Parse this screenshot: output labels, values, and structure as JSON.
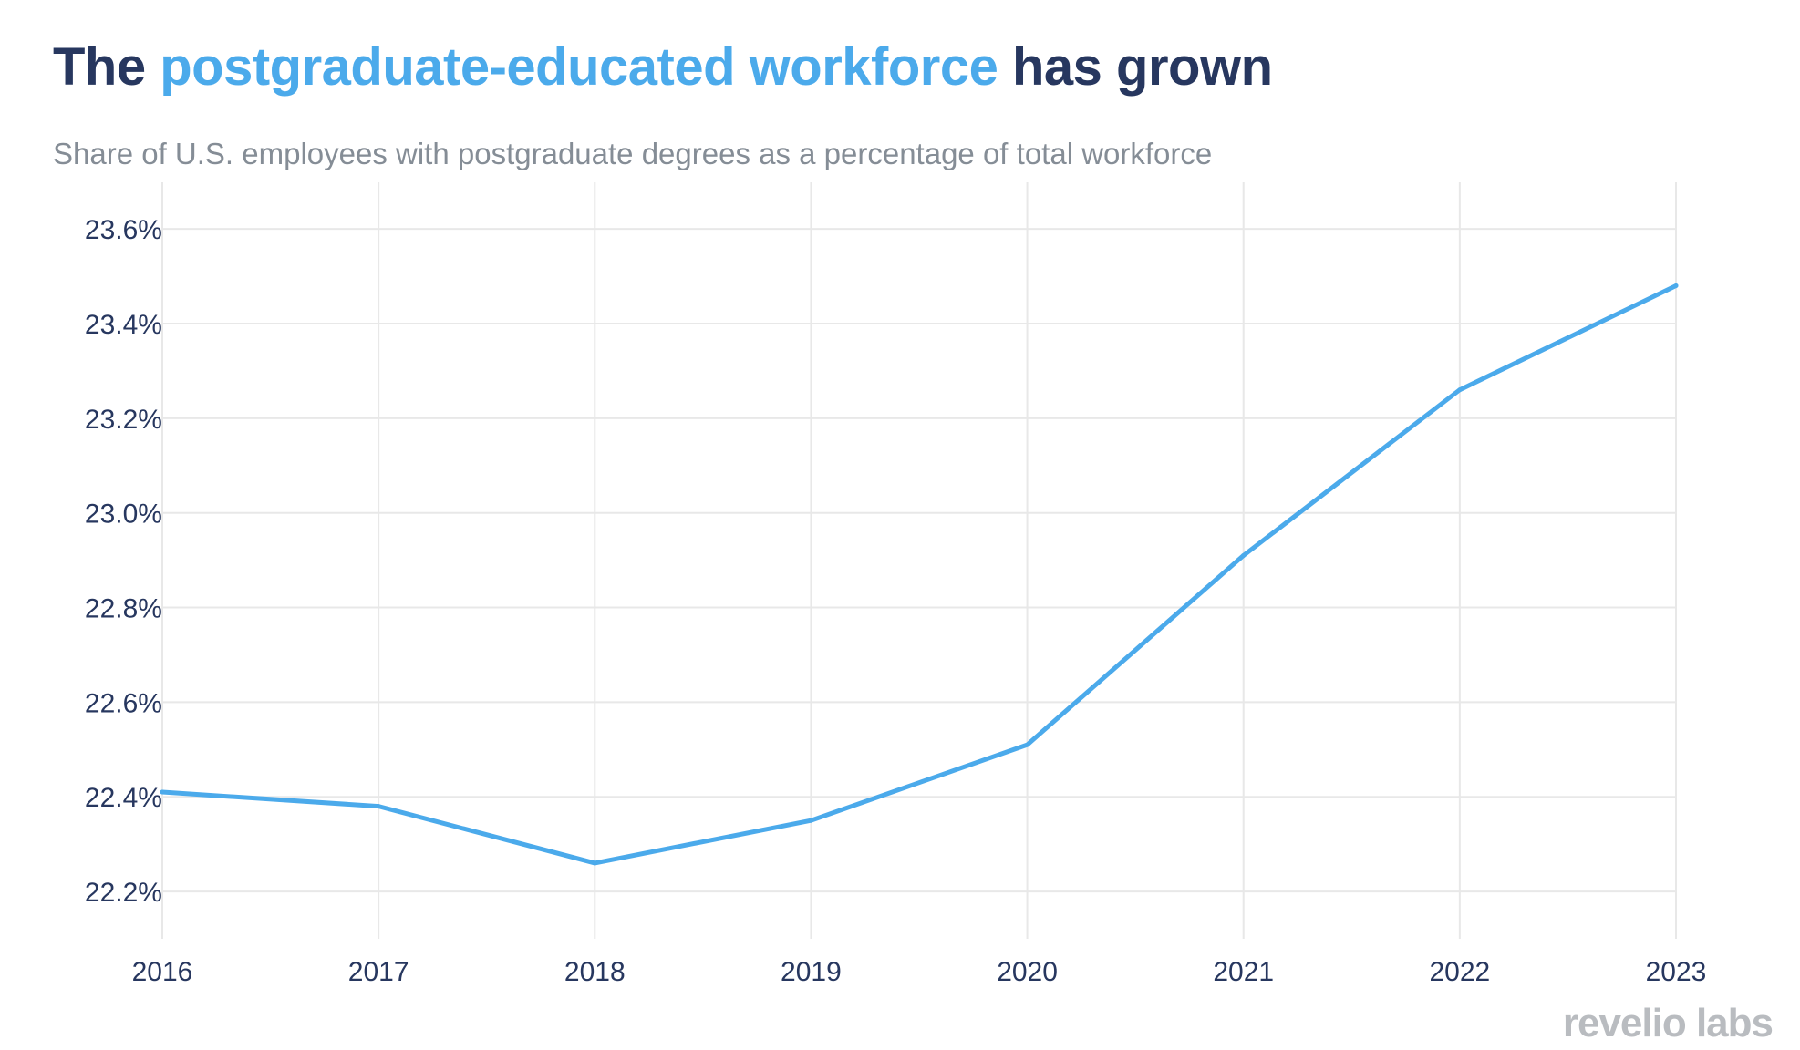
{
  "header": {
    "title_part1": "The ",
    "title_highlight": "postgraduate-educated workforce",
    "title_part2": " has grown",
    "subtitle": "Share of U.S. employees with postgraduate degrees as a percentage of total workforce"
  },
  "branding": {
    "logo_text": "revelio labs"
  },
  "colors": {
    "title": "#27375f",
    "highlight": "#4baaeb",
    "line": "#4baaeb",
    "grid": "#e8e8e8",
    "subtitle": "#858d96"
  },
  "chart_data": {
    "type": "line",
    "title": "The postgraduate-educated workforce has grown",
    "subtitle": "Share of U.S. employees with postgraduate degrees as a percentage of total workforce",
    "xlabel": "",
    "ylabel": "",
    "x": [
      2016,
      2017,
      2018,
      2019,
      2020,
      2021,
      2022,
      2023
    ],
    "x_tick_labels": [
      "2016",
      "2017",
      "2018",
      "2019",
      "2020",
      "2021",
      "2022",
      "2023"
    ],
    "y_ticks": [
      22.2,
      22.4,
      22.6,
      22.8,
      23.0,
      23.2,
      23.4,
      23.6
    ],
    "y_tick_labels": [
      "22.2%",
      "22.4%",
      "22.6%",
      "22.8%",
      "23.0%",
      "23.2%",
      "23.4%",
      "23.6%"
    ],
    "ylim": [
      22.1,
      23.66
    ],
    "grid": true,
    "legend": "none",
    "series": [
      {
        "values": [
          22.41,
          22.38,
          22.26,
          22.35,
          22.51,
          22.91,
          23.26,
          23.48
        ]
      }
    ]
  }
}
